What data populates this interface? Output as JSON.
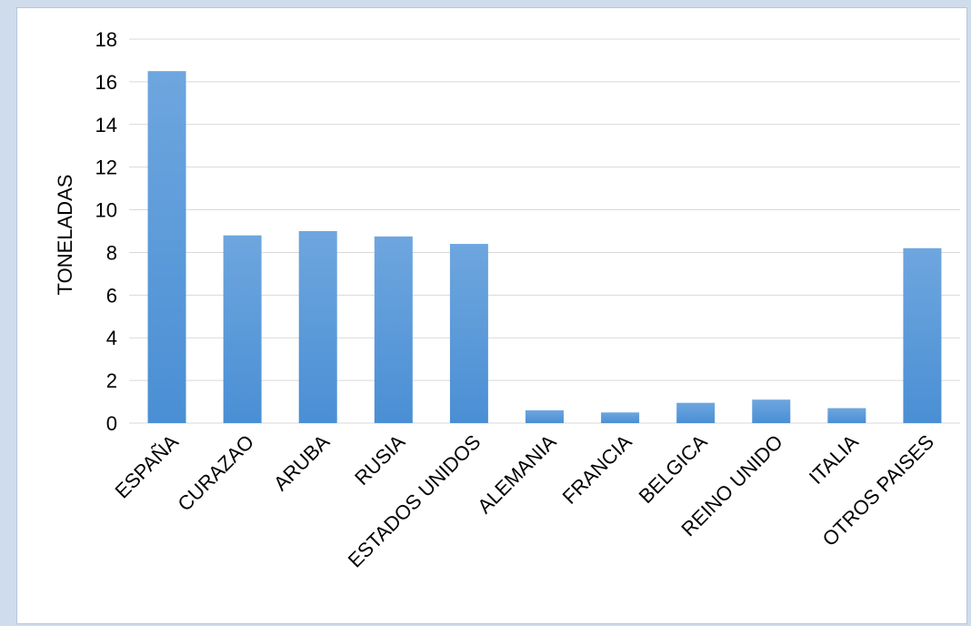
{
  "chart_data": {
    "type": "bar",
    "title": "",
    "xlabel": "",
    "ylabel": "TONELADAS",
    "ylim": [
      0,
      18
    ],
    "ytick_step": 2,
    "grid": true,
    "legend": "none",
    "bar_color": "#4a8fd4",
    "bar_color_top": "#6ea6df",
    "categories": [
      "ESPAÑA",
      "CURAZAO",
      "ARUBA",
      "RUSIA",
      "ESTADOS UNIDOS",
      "ALEMANIA",
      "FRANCIA",
      "BELGICA",
      "REINO UNIDO",
      "ITALIA",
      "OTROS PAISES"
    ],
    "values": [
      16.5,
      8.8,
      9.0,
      8.75,
      8.4,
      0.6,
      0.5,
      0.95,
      1.1,
      0.7,
      8.2
    ]
  }
}
